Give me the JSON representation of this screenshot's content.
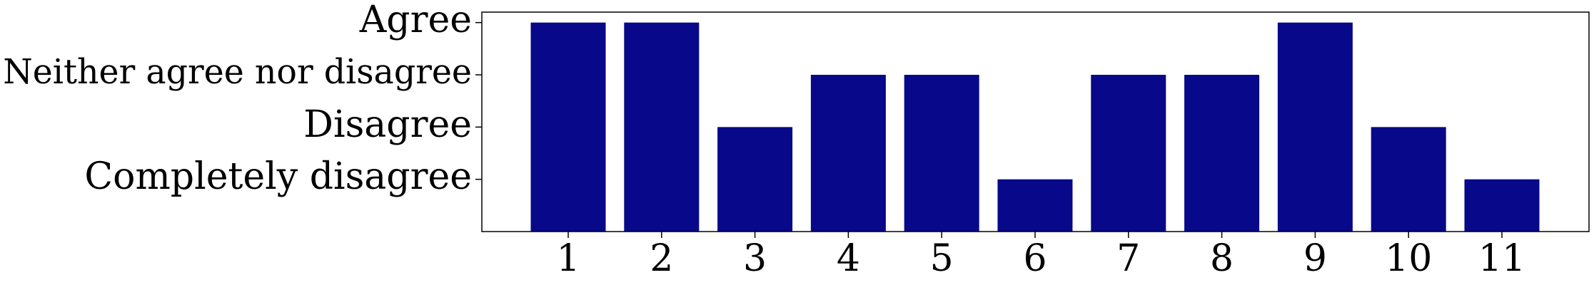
{
  "chart_data": {
    "type": "bar",
    "categories": [
      "1",
      "2",
      "3",
      "4",
      "5",
      "6",
      "7",
      "8",
      "9",
      "10",
      "11"
    ],
    "values": [
      4,
      4,
      2,
      3,
      3,
      1,
      3,
      3,
      4,
      2,
      1
    ],
    "y_ticks": [
      {
        "value": 1,
        "label": "Completely disagree"
      },
      {
        "value": 2,
        "label": "Disagree"
      },
      {
        "value": 3,
        "label": "Neither agree nor disagree"
      },
      {
        "value": 4,
        "label": "Agree"
      }
    ],
    "ylim": [
      0,
      4.2
    ],
    "bar_color": "#08088a",
    "grid": false,
    "legend": "none",
    "title": "",
    "xlabel": "",
    "ylabel": ""
  }
}
